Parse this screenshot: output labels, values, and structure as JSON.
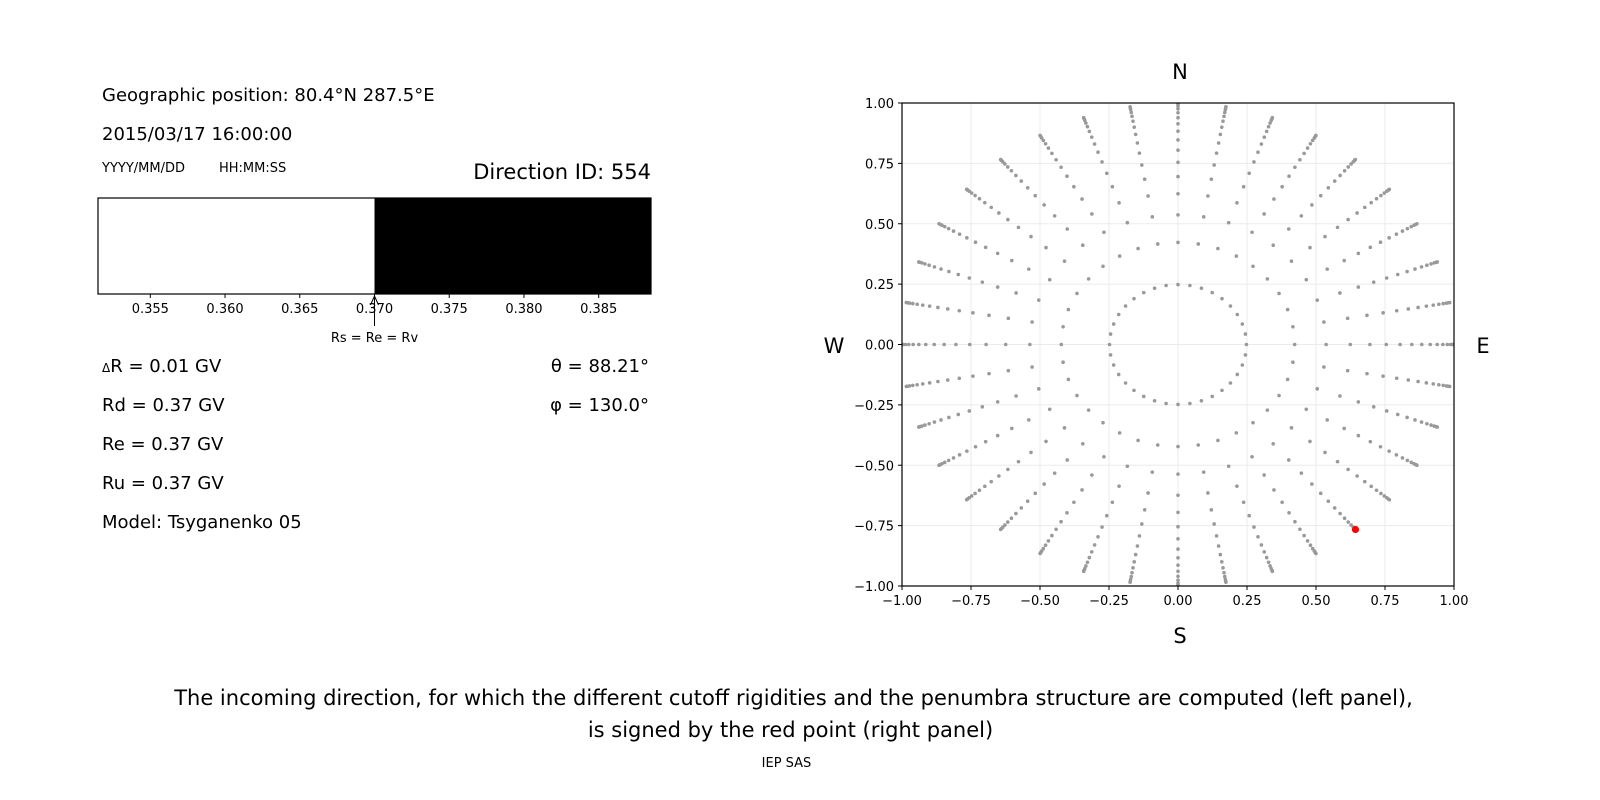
{
  "left_panel": {
    "geo_position": "Geographic position: 80.4°N 287.5°E",
    "datetime": "2015/03/17 16:00:00",
    "date_format": "YYYY/MM/DD",
    "time_format": "HH:MM:SS",
    "direction_id": "Direction ID: 554",
    "delta_symbol": "Δ",
    "delta_r": "R = 0.01 GV",
    "rd": "Rd = 0.37 GV",
    "re": "Re = 0.37 GV",
    "ru": "Ru = 0.37 GV",
    "model": "Model: Tsyganenko 05",
    "theta": "θ = 88.21°",
    "phi": "φ = 130.0°"
  },
  "chart_data": [
    {
      "type": "penumbra-bar",
      "xlim": [
        0.3515,
        0.3885
      ],
      "ticks": [
        "0.355",
        "0.360",
        "0.365",
        "0.370",
        "0.375",
        "0.380",
        "0.385"
      ],
      "segments": [
        {
          "from": 0.3515,
          "to": 0.37,
          "state": "allowed",
          "color": "#ffffff"
        },
        {
          "from": 0.37,
          "to": 0.3885,
          "state": "forbidden",
          "color": "#000000"
        }
      ],
      "annotation": {
        "x": 0.37,
        "text": "Rs = Re = Rv"
      }
    },
    {
      "type": "scatter",
      "xlim": [
        -1.0,
        1.0
      ],
      "ylim": [
        -1.0,
        1.0
      ],
      "xticks": [
        "−1.00",
        "−0.75",
        "−0.50",
        "−0.25",
        "0.00",
        "0.25",
        "0.50",
        "0.75",
        "1.00"
      ],
      "yticks": [
        "−1.00",
        "−0.75",
        "−0.50",
        "−0.25",
        "0.00",
        "0.25",
        "0.50",
        "0.75",
        "1.00"
      ],
      "grid": true,
      "directions_grid": {
        "cos_zenith": [
          0.96875,
          0.90625,
          0.84375,
          0.78125,
          0.71875,
          0.65625,
          0.59375,
          0.53125,
          0.46875,
          0.40625,
          0.34375,
          0.28125,
          0.21875,
          0.15625,
          0.09375,
          0.03125
        ],
        "azimuth_step_deg": 10,
        "color": "#999999"
      },
      "selected_point": {
        "x": 0.643,
        "y": -0.766,
        "color": "#ff0000"
      },
      "compass": {
        "north": "N",
        "south": "S",
        "west": "W",
        "east": "E"
      }
    }
  ],
  "caption": {
    "line1": "The incoming direction, for which the different cutoff rigidities and the penumbra structure are computed (left panel),",
    "line2": "is signed by the red point (right panel)"
  },
  "credit": "IEP SAS"
}
